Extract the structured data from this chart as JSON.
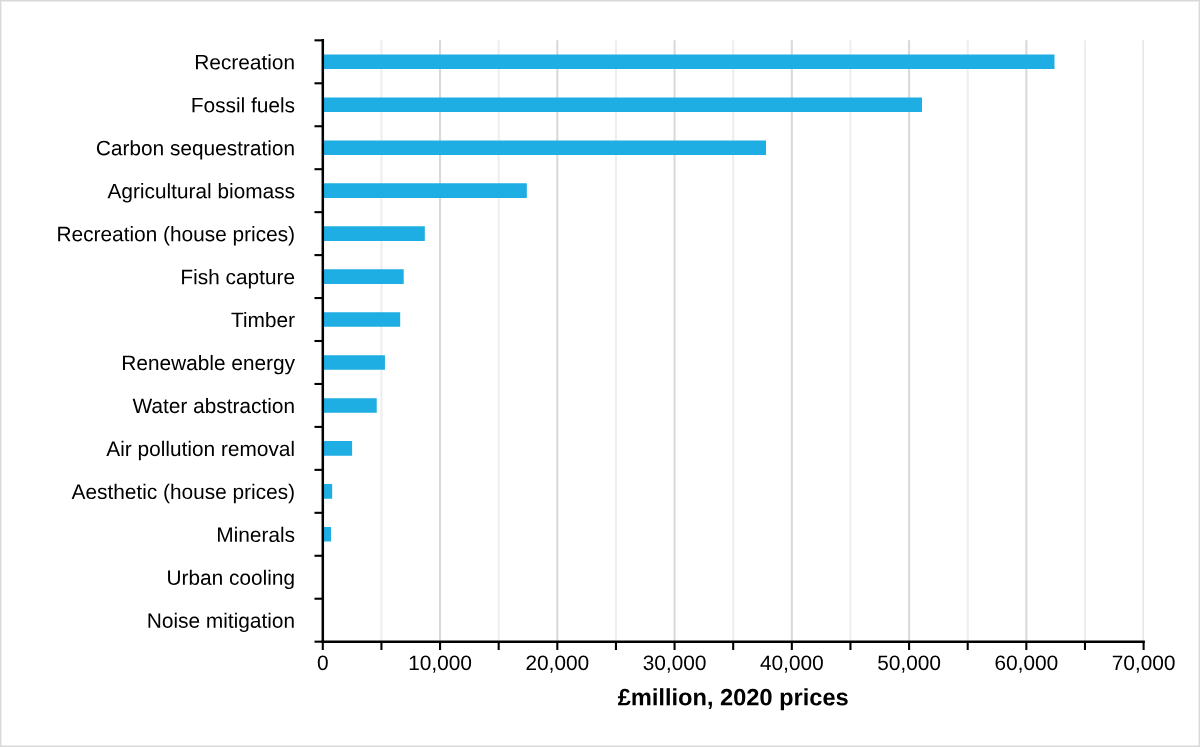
{
  "chart_data": {
    "type": "bar",
    "orientation": "horizontal",
    "xlabel": "£million, 2020 prices",
    "categories": [
      "Recreation",
      "Fossil fuels",
      "Carbon sequestration",
      "Agricultural biomass",
      "Recreation (house prices)",
      "Fish capture",
      "Timber",
      "Renewable energy",
      "Water abstraction",
      "Air pollution removal",
      "Aesthetic (house prices)",
      "Minerals",
      "Urban cooling",
      "Noise mitigation"
    ],
    "values": [
      62400,
      51100,
      37800,
      17400,
      8700,
      6900,
      6600,
      5300,
      4600,
      2500,
      800,
      700,
      0,
      0
    ],
    "color": "#1eaee3",
    "xlim": [
      0,
      70000
    ],
    "xticks": [
      0,
      {
        "value": 5000,
        "label": null
      },
      {
        "value": 10000,
        "label": "10,000"
      },
      {
        "value": 15000,
        "label": null
      },
      {
        "value": 20000,
        "label": "20,000"
      },
      {
        "value": 25000,
        "label": null
      },
      {
        "value": 30000,
        "label": "30,000"
      },
      {
        "value": 35000,
        "label": null
      },
      {
        "value": 40000,
        "label": "40,000"
      },
      {
        "value": 45000,
        "label": null
      },
      {
        "value": 50000,
        "label": "50,000"
      },
      {
        "value": 55000,
        "label": null
      },
      {
        "value": 60000,
        "label": "60,000"
      },
      {
        "value": 65000,
        "label": null
      },
      {
        "value": 70000,
        "label": "70,000"
      }
    ],
    "grid": "x"
  }
}
